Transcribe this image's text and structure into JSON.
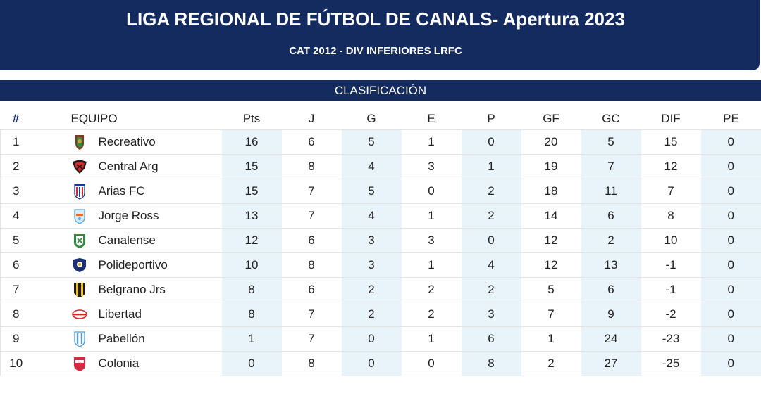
{
  "header": {
    "title": "LIGA REGIONAL DE FÚTBOL DE CANALS- Apertura 2023",
    "subtitle": "CAT 2012 - DIV INFERIORES LRFC"
  },
  "section_title": "CLASIFICACIÓN",
  "columns": [
    "#",
    "EQUIPO",
    "Pts",
    "J",
    "G",
    "E",
    "P",
    "GF",
    "GC",
    "DIF",
    "PE"
  ],
  "rows": [
    {
      "pos": "1",
      "team": "Recreativo",
      "crest": "recreativo-crest",
      "pts": "16",
      "j": "6",
      "g": "5",
      "e": "1",
      "p": "0",
      "gf": "20",
      "gc": "5",
      "dif": "15",
      "pe": "0"
    },
    {
      "pos": "2",
      "team": "Central Arg",
      "crest": "central-arg-crest",
      "pts": "15",
      "j": "8",
      "g": "4",
      "e": "3",
      "p": "1",
      "gf": "19",
      "gc": "7",
      "dif": "12",
      "pe": "0"
    },
    {
      "pos": "3",
      "team": "Arias FC",
      "crest": "arias-fc-crest",
      "pts": "15",
      "j": "7",
      "g": "5",
      "e": "0",
      "p": "2",
      "gf": "18",
      "gc": "11",
      "dif": "7",
      "pe": "0"
    },
    {
      "pos": "4",
      "team": "Jorge Ross",
      "crest": "jorge-ross-crest",
      "pts": "13",
      "j": "7",
      "g": "4",
      "e": "1",
      "p": "2",
      "gf": "14",
      "gc": "6",
      "dif": "8",
      "pe": "0"
    },
    {
      "pos": "5",
      "team": "Canalense",
      "crest": "canalense-crest",
      "pts": "12",
      "j": "6",
      "g": "3",
      "e": "3",
      "p": "0",
      "gf": "12",
      "gc": "2",
      "dif": "10",
      "pe": "0"
    },
    {
      "pos": "6",
      "team": "Polideportivo",
      "crest": "polideportivo-crest",
      "pts": "10",
      "j": "8",
      "g": "3",
      "e": "1",
      "p": "4",
      "gf": "12",
      "gc": "13",
      "dif": "-1",
      "pe": "0"
    },
    {
      "pos": "7",
      "team": "Belgrano Jrs",
      "crest": "belgrano-jrs-crest",
      "pts": "8",
      "j": "6",
      "g": "2",
      "e": "2",
      "p": "2",
      "gf": "5",
      "gc": "6",
      "dif": "-1",
      "pe": "0"
    },
    {
      "pos": "8",
      "team": "Libertad",
      "crest": "libertad-crest",
      "pts": "8",
      "j": "7",
      "g": "2",
      "e": "2",
      "p": "3",
      "gf": "7",
      "gc": "9",
      "dif": "-2",
      "pe": "0"
    },
    {
      "pos": "9",
      "team": "Pabellón",
      "crest": "pabellon-crest",
      "pts": "1",
      "j": "7",
      "g": "0",
      "e": "1",
      "p": "6",
      "gf": "1",
      "gc": "24",
      "dif": "-23",
      "pe": "0"
    },
    {
      "pos": "10",
      "team": "Colonia",
      "crest": "colonia-crest",
      "pts": "0",
      "j": "8",
      "g": "0",
      "e": "0",
      "p": "8",
      "gf": "2",
      "gc": "27",
      "dif": "-25",
      "pe": "0"
    }
  ],
  "colors": {
    "header_bg": "#132b5e",
    "shade": "#e9f3fa",
    "border": "#e4e4e4"
  }
}
